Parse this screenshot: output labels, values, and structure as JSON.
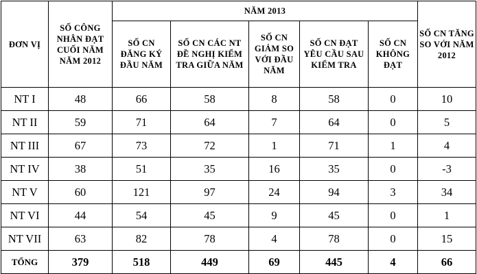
{
  "table": {
    "headers": {
      "unit": "ĐƠN VỊ",
      "workers_2012": "SỐ CÔNG NHÂN ĐẠT CUỐI NĂM NĂM 2012",
      "year_2013": "NĂM 2013",
      "sub": [
        "SỐ CN ĐĂNG KÝ ĐẦU NĂM",
        "SỐ CN CÁC NT ĐỀ NGHỊ KIỂM TRA GIỮA NĂM",
        "SỐ CN GIẢM SO VỚI ĐẦU NĂM",
        "SỐ CN ĐẠT YÊU CẦU SAU KIỂM TRA",
        "SỐ CN KHÔNG ĐẠT"
      ],
      "increase": "SỐ CN TĂNG SO VỚI NĂM 2012"
    },
    "rows": [
      [
        "NT I",
        48,
        66,
        58,
        8,
        58,
        0,
        10
      ],
      [
        "NT II",
        59,
        71,
        64,
        7,
        64,
        0,
        5
      ],
      [
        "NT III",
        67,
        73,
        72,
        1,
        71,
        1,
        4
      ],
      [
        "NT IV",
        38,
        51,
        35,
        16,
        35,
        0,
        -3
      ],
      [
        "NT V",
        60,
        121,
        97,
        24,
        94,
        3,
        34
      ],
      [
        "NT VI",
        44,
        54,
        45,
        9,
        45,
        0,
        1
      ],
      [
        "NT VII",
        63,
        82,
        78,
        4,
        78,
        0,
        15
      ]
    ],
    "total": [
      "TỔNG",
      379,
      518,
      449,
      69,
      445,
      4,
      66
    ]
  }
}
